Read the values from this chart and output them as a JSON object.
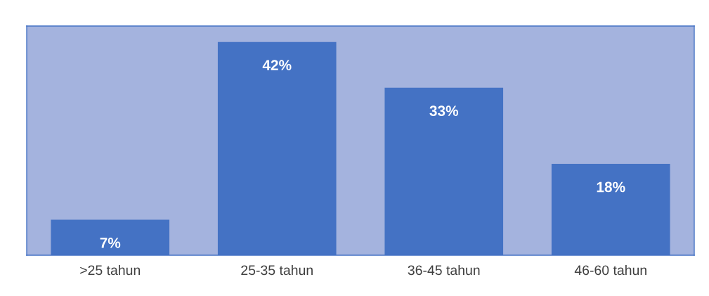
{
  "chart_data": {
    "type": "bar",
    "categories": [
      ">25 tahun",
      "25-35 tahun",
      "36-45 tahun",
      "46-60 tahun"
    ],
    "values": [
      7,
      42,
      33,
      18
    ],
    "value_labels": [
      "7%",
      "42%",
      "33%",
      "18%"
    ],
    "color": "#4472c4",
    "grid": false,
    "legend": false
  }
}
